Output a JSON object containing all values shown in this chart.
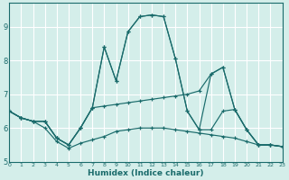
{
  "xlabel": "Humidex (Indice chaleur)",
  "xlim": [
    0,
    23
  ],
  "ylim": [
    5.0,
    9.7
  ],
  "yticks": [
    5,
    6,
    7,
    8,
    9
  ],
  "xticks": [
    0,
    1,
    2,
    3,
    4,
    5,
    6,
    7,
    8,
    9,
    10,
    11,
    12,
    13,
    14,
    15,
    16,
    17,
    18,
    19,
    20,
    21,
    22,
    23
  ],
  "bg_color": "#d4eeea",
  "grid_color": "#b8ddd8",
  "line_color": "#1a6b6b",
  "lines": [
    {
      "x": [
        0,
        1,
        2,
        3,
        4,
        5,
        6,
        7,
        8,
        9,
        10,
        11,
        12,
        13,
        14,
        15,
        16,
        17,
        18,
        19,
        20,
        21,
        22,
        23
      ],
      "y": [
        6.5,
        6.3,
        6.2,
        6.2,
        5.7,
        5.5,
        6.0,
        6.6,
        8.4,
        7.4,
        8.85,
        9.3,
        9.35,
        9.3,
        8.05,
        6.5,
        5.95,
        5.95,
        6.5,
        6.55,
        5.95,
        5.5,
        5.5,
        5.45
      ]
    },
    {
      "x": [
        0,
        1,
        2,
        3,
        4,
        5,
        6,
        7,
        8,
        9,
        10,
        11,
        12,
        13,
        14,
        15,
        16,
        17,
        18,
        19,
        20,
        21,
        22,
        23
      ],
      "y": [
        6.5,
        6.3,
        6.2,
        6.2,
        5.7,
        5.5,
        6.0,
        6.6,
        6.65,
        6.7,
        6.75,
        6.8,
        6.85,
        6.9,
        6.95,
        7.0,
        7.1,
        7.6,
        7.8,
        6.55,
        5.95,
        5.5,
        5.5,
        5.45
      ]
    },
    {
      "x": [
        0,
        1,
        2,
        3,
        4,
        5,
        6,
        7,
        8,
        9,
        10,
        11,
        12,
        13,
        14,
        15,
        16,
        17,
        18,
        19,
        20,
        21,
        22,
        23
      ],
      "y": [
        6.5,
        6.3,
        6.2,
        6.2,
        5.7,
        5.5,
        6.0,
        6.6,
        8.4,
        7.4,
        8.85,
        9.3,
        9.35,
        9.3,
        8.05,
        6.5,
        5.95,
        7.6,
        7.8,
        6.55,
        5.95,
        5.5,
        5.5,
        5.45
      ]
    },
    {
      "x": [
        0,
        1,
        2,
        3,
        4,
        5,
        6,
        7,
        8,
        9,
        10,
        11,
        12,
        13,
        14,
        15,
        16,
        17,
        18,
        19,
        20,
        21,
        22,
        23
      ],
      "y": [
        6.5,
        6.3,
        6.2,
        6.0,
        5.6,
        5.4,
        5.55,
        5.65,
        5.75,
        5.9,
        5.95,
        6.0,
        6.0,
        6.0,
        5.95,
        5.9,
        5.85,
        5.8,
        5.75,
        5.7,
        5.6,
        5.5,
        5.5,
        5.45
      ]
    }
  ]
}
